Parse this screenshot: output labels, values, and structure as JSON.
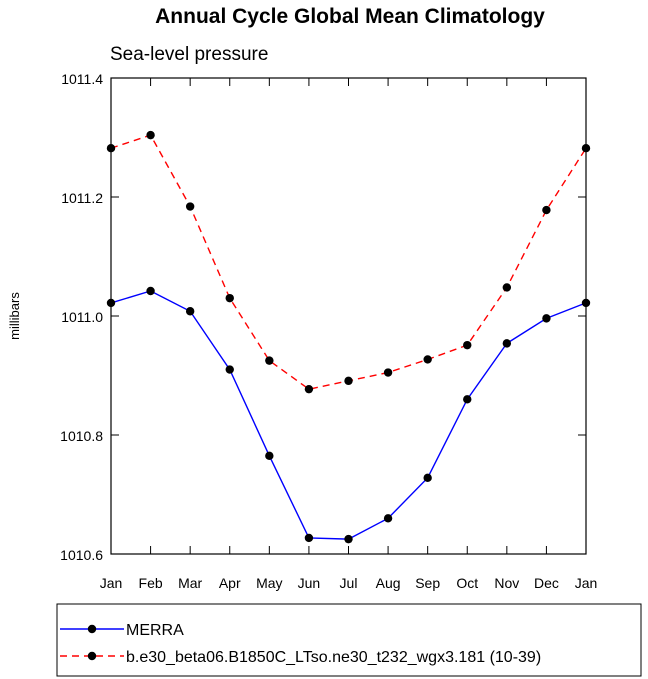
{
  "chart_data": {
    "type": "line",
    "title": "Annual Cycle Global Mean Climatology",
    "subtitle": "Sea-level pressure",
    "xlabel": "",
    "ylabel": "millibars",
    "categories": [
      "Jan",
      "Feb",
      "Mar",
      "Apr",
      "May",
      "Jun",
      "Jul",
      "Aug",
      "Sep",
      "Oct",
      "Nov",
      "Dec",
      "Jan"
    ],
    "ylim": [
      1010.6,
      1011.4
    ],
    "yticks": [
      1010.6,
      1010.8,
      1011.0,
      1011.2,
      1011.4
    ],
    "ytick_labels": [
      "1010.6",
      "1010.8",
      "1011.0",
      "1011.2",
      "1011.4"
    ],
    "grid": false,
    "legend_position": "bottom",
    "series": [
      {
        "name": "MERRA",
        "color": "#0000ff",
        "dash": "solid",
        "values": [
          1011.022,
          1011.042,
          1011.008,
          1010.91,
          1010.765,
          1010.627,
          1010.625,
          1010.66,
          1010.728,
          1010.86,
          1010.954,
          1010.996,
          1011.022
        ]
      },
      {
        "name": "b.e30_beta06.B1850C_LTso.ne30_t232_wgx3.181 (10-39)",
        "color": "#ff0000",
        "dash": "dashed",
        "values": [
          1011.282,
          1011.304,
          1011.184,
          1011.03,
          1010.925,
          1010.877,
          1010.891,
          1010.905,
          1010.927,
          1010.951,
          1011.048,
          1011.178,
          1011.282
        ]
      }
    ]
  }
}
